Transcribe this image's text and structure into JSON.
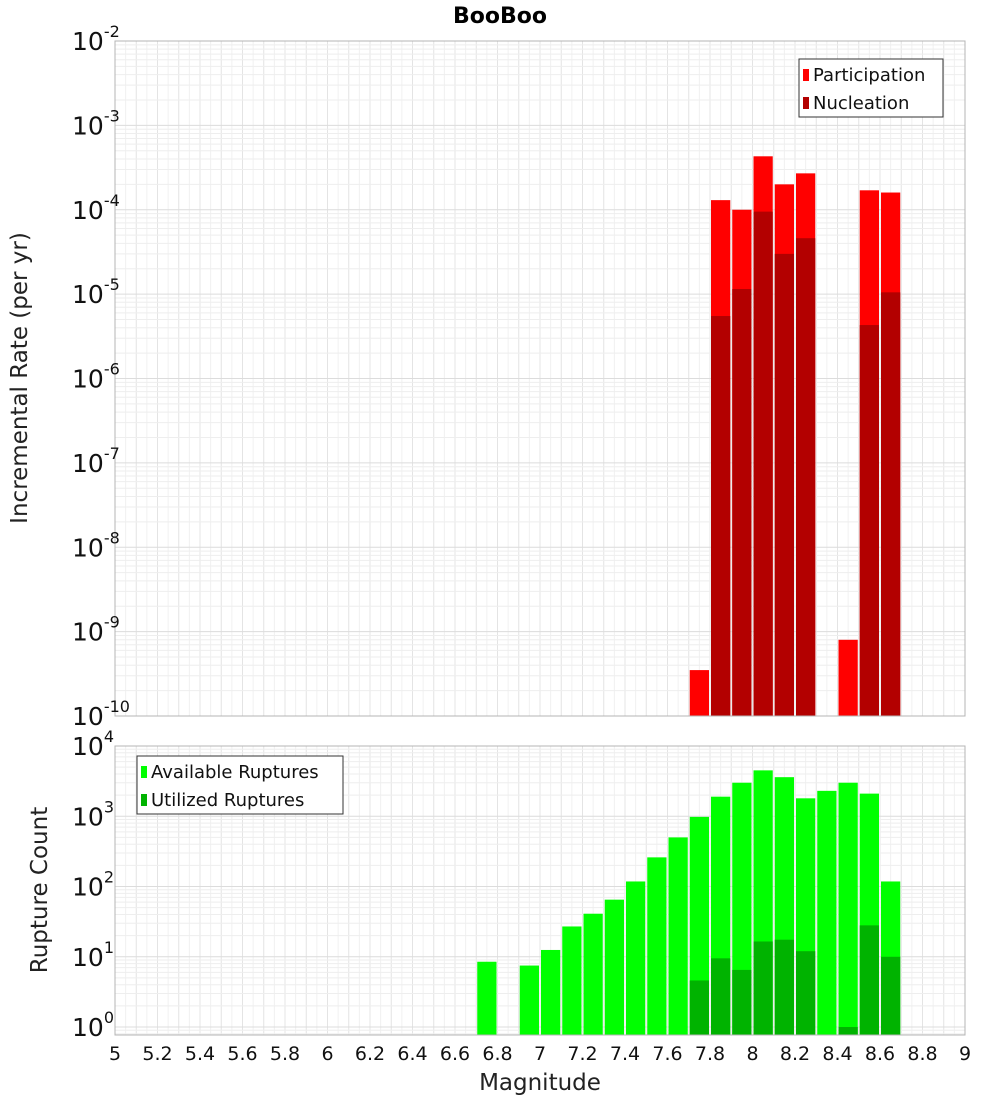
{
  "chart_data": {
    "title": "BooBoo",
    "xlabel": "Magnitude",
    "xlim": [
      5,
      9
    ],
    "x_ticks": [
      "5",
      "5.2",
      "5.4",
      "5.6",
      "5.8",
      "6",
      "6.2",
      "6.4",
      "6.6",
      "6.8",
      "7",
      "7.2",
      "7.4",
      "7.6",
      "7.8",
      "8",
      "8.2",
      "8.4",
      "8.6",
      "8.8",
      "9"
    ],
    "grid": true,
    "panels": [
      {
        "type": "bar",
        "ylabel": "Incremental Rate (per yr)",
        "yscale": "log",
        "ylim": [
          1e-10,
          0.01
        ],
        "y_ticks": [
          {
            "base": "10",
            "exp": "-2"
          },
          {
            "base": "10",
            "exp": "-3"
          },
          {
            "base": "10",
            "exp": "-4"
          },
          {
            "base": "10",
            "exp": "-5"
          },
          {
            "base": "10",
            "exp": "-6"
          },
          {
            "base": "10",
            "exp": "-7"
          },
          {
            "base": "10",
            "exp": "-8"
          },
          {
            "base": "10",
            "exp": "-9"
          },
          {
            "base": "10",
            "exp": "-10"
          }
        ],
        "legend_position": "top-right",
        "series": [
          {
            "name": "Participation",
            "color": "#ff0000",
            "points": [
              {
                "x": 7.75,
                "y": 3.5e-10
              },
              {
                "x": 7.85,
                "y": 0.00013
              },
              {
                "x": 7.95,
                "y": 0.0001
              },
              {
                "x": 8.05,
                "y": 0.00043
              },
              {
                "x": 8.15,
                "y": 0.0002
              },
              {
                "x": 8.25,
                "y": 0.00027
              },
              {
                "x": 8.45,
                "y": 8e-10
              },
              {
                "x": 8.55,
                "y": 0.00017
              },
              {
                "x": 8.65,
                "y": 0.00016
              }
            ]
          },
          {
            "name": "Nucleation",
            "color": "#b30000",
            "points": [
              {
                "x": 7.85,
                "y": 5.5e-06
              },
              {
                "x": 7.95,
                "y": 1.15e-05
              },
              {
                "x": 8.05,
                "y": 9.5e-05
              },
              {
                "x": 8.15,
                "y": 3e-05
              },
              {
                "x": 8.25,
                "y": 4.6e-05
              },
              {
                "x": 8.55,
                "y": 4.3e-06
              },
              {
                "x": 8.65,
                "y": 1.05e-05
              }
            ]
          }
        ]
      },
      {
        "type": "bar",
        "ylabel": "Rupture Count",
        "yscale": "log",
        "ylim": [
          0.77,
          10000
        ],
        "y_ticks": [
          {
            "base": "10",
            "exp": "4"
          },
          {
            "base": "10",
            "exp": "3"
          },
          {
            "base": "10",
            "exp": "2"
          },
          {
            "base": "10",
            "exp": "1"
          },
          {
            "base": "10",
            "exp": "0"
          }
        ],
        "legend_position": "top-left",
        "series": [
          {
            "name": "Available Ruptures",
            "color": "#00ff00",
            "points": [
              {
                "x": 6.75,
                "y": 8.5
              },
              {
                "x": 6.95,
                "y": 7.5
              },
              {
                "x": 7.05,
                "y": 12.5
              },
              {
                "x": 7.15,
                "y": 27
              },
              {
                "x": 7.25,
                "y": 41
              },
              {
                "x": 7.35,
                "y": 65
              },
              {
                "x": 7.45,
                "y": 118
              },
              {
                "x": 7.55,
                "y": 260
              },
              {
                "x": 7.65,
                "y": 500
              },
              {
                "x": 7.75,
                "y": 980
              },
              {
                "x": 7.85,
                "y": 1900
              },
              {
                "x": 7.95,
                "y": 3000
              },
              {
                "x": 8.05,
                "y": 4500
              },
              {
                "x": 8.15,
                "y": 3600
              },
              {
                "x": 8.25,
                "y": 1800
              },
              {
                "x": 8.35,
                "y": 2300
              },
              {
                "x": 8.45,
                "y": 3000
              },
              {
                "x": 8.55,
                "y": 2100
              },
              {
                "x": 8.65,
                "y": 118
              }
            ]
          },
          {
            "name": "Utilized Ruptures",
            "color": "#00b300",
            "points": [
              {
                "x": 7.75,
                "y": 4.6
              },
              {
                "x": 7.85,
                "y": 9.5
              },
              {
                "x": 7.95,
                "y": 6.5
              },
              {
                "x": 8.05,
                "y": 16.5
              },
              {
                "x": 8.15,
                "y": 17.5
              },
              {
                "x": 8.25,
                "y": 12
              },
              {
                "x": 8.45,
                "y": 1
              },
              {
                "x": 8.55,
                "y": 28
              },
              {
                "x": 8.65,
                "y": 10
              }
            ]
          }
        ]
      }
    ]
  }
}
